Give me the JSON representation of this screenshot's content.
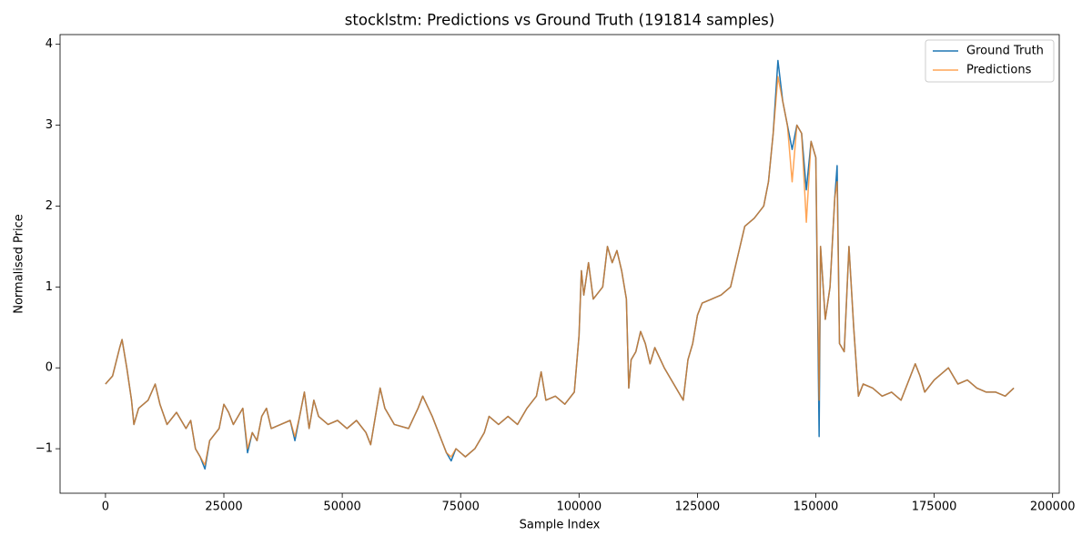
{
  "chart_data": {
    "type": "line",
    "title": "stocklstm: Predictions vs Ground Truth (191814 samples)",
    "x_label": "Sample Index",
    "y_label": "Normalised Price",
    "x": [
      0,
      1500,
      3000,
      3500,
      4500,
      5500,
      6000,
      7000,
      9000,
      10500,
      11500,
      13000,
      15000,
      17000,
      18000,
      19000,
      20000,
      21000,
      22000,
      24000,
      25000,
      26000,
      27000,
      29000,
      30000,
      31000,
      32000,
      33000,
      34000,
      35000,
      37000,
      39000,
      40000,
      41000,
      42000,
      43000,
      44000,
      45000,
      47000,
      49000,
      51000,
      53000,
      55000,
      56000,
      57000,
      58000,
      59000,
      61000,
      64000,
      66000,
      67000,
      69000,
      71000,
      72000,
      73000,
      74000,
      76000,
      78000,
      80000,
      81000,
      83000,
      85000,
      87000,
      89000,
      91000,
      92000,
      93000,
      95000,
      97000,
      99000,
      100000,
      100500,
      101000,
      102000,
      103000,
      105000,
      106000,
      107000,
      108000,
      109000,
      110000,
      110500,
      111000,
      112000,
      113000,
      114000,
      115000,
      116000,
      118000,
      120000,
      122000,
      123000,
      124000,
      125000,
      126000,
      128000,
      130000,
      132000,
      134000,
      135000,
      137000,
      139000,
      140000,
      141000,
      142000,
      143000,
      144000,
      145000,
      146000,
      147000,
      148000,
      149000,
      150000,
      150700,
      151000,
      152000,
      153000,
      154000,
      154500,
      155000,
      156000,
      157000,
      158000,
      159000,
      160000,
      162000,
      164000,
      166000,
      168000,
      170000,
      171000,
      172000,
      173000,
      175000,
      177000,
      178000,
      180000,
      182000,
      184000,
      186000,
      188000,
      190000,
      191813
    ],
    "series": [
      {
        "name": "Ground Truth",
        "color": "#1f77b4",
        "alpha": 1,
        "values": [
          -0.2,
          -0.1,
          0.25,
          0.35,
          0,
          -0.4,
          -0.7,
          -0.5,
          -0.4,
          -0.2,
          -0.45,
          -0.7,
          -0.55,
          -0.75,
          -0.65,
          -1.0,
          -1.1,
          -1.25,
          -0.9,
          -0.75,
          -0.45,
          -0.55,
          -0.7,
          -0.5,
          -1.05,
          -0.8,
          -0.9,
          -0.6,
          -0.5,
          -0.75,
          -0.7,
          -0.65,
          -0.9,
          -0.6,
          -0.3,
          -0.75,
          -0.4,
          -0.6,
          -0.7,
          -0.65,
          -0.75,
          -0.65,
          -0.8,
          -0.95,
          -0.6,
          -0.25,
          -0.5,
          -0.7,
          -0.75,
          -0.5,
          -0.35,
          -0.6,
          -0.9,
          -1.05,
          -1.15,
          -1.0,
          -1.1,
          -1.0,
          -0.8,
          -0.6,
          -0.7,
          -0.6,
          -0.7,
          -0.5,
          -0.35,
          -0.05,
          -0.4,
          -0.35,
          -0.45,
          -0.3,
          0.4,
          1.2,
          0.9,
          1.3,
          0.85,
          1.0,
          1.5,
          1.3,
          1.45,
          1.2,
          0.85,
          -0.25,
          0.1,
          0.2,
          0.45,
          0.3,
          0.05,
          0.25,
          0.0,
          -0.2,
          -0.4,
          0.1,
          0.3,
          0.65,
          0.8,
          0.85,
          0.9,
          1.0,
          1.5,
          1.75,
          1.85,
          2.0,
          2.3,
          2.9,
          3.8,
          3.3,
          3.0,
          2.7,
          3.0,
          2.9,
          2.2,
          2.8,
          2.6,
          -0.85,
          1.5,
          0.6,
          1.0,
          2.1,
          2.5,
          0.3,
          0.2,
          1.5,
          0.5,
          -0.35,
          -0.2,
          -0.25,
          -0.35,
          -0.3,
          -0.4,
          -0.1,
          0.05,
          -0.1,
          -0.3,
          -0.15,
          -0.05,
          0.0,
          -0.2,
          -0.15,
          -0.25,
          -0.3,
          -0.3,
          -0.35,
          -0.25
        ]
      },
      {
        "name": "Predictions",
        "color": "#ff7f0e",
        "alpha": 0.7,
        "values": [
          -0.2,
          -0.1,
          0.25,
          0.35,
          0,
          -0.4,
          -0.7,
          -0.5,
          -0.4,
          -0.2,
          -0.45,
          -0.7,
          -0.55,
          -0.75,
          -0.65,
          -1.0,
          -1.1,
          -1.2,
          -0.9,
          -0.75,
          -0.45,
          -0.55,
          -0.7,
          -0.5,
          -1.0,
          -0.8,
          -0.9,
          -0.6,
          -0.5,
          -0.75,
          -0.7,
          -0.65,
          -0.85,
          -0.6,
          -0.3,
          -0.75,
          -0.4,
          -0.6,
          -0.7,
          -0.65,
          -0.75,
          -0.65,
          -0.8,
          -0.95,
          -0.6,
          -0.25,
          -0.5,
          -0.7,
          -0.75,
          -0.5,
          -0.35,
          -0.6,
          -0.9,
          -1.05,
          -1.1,
          -1.0,
          -1.1,
          -1.0,
          -0.8,
          -0.6,
          -0.7,
          -0.6,
          -0.7,
          -0.5,
          -0.35,
          -0.05,
          -0.4,
          -0.35,
          -0.45,
          -0.3,
          0.4,
          1.2,
          0.9,
          1.3,
          0.85,
          1.0,
          1.5,
          1.3,
          1.45,
          1.2,
          0.85,
          -0.25,
          0.1,
          0.2,
          0.45,
          0.3,
          0.05,
          0.25,
          0.0,
          -0.2,
          -0.4,
          0.1,
          0.3,
          0.65,
          0.8,
          0.85,
          0.9,
          1.0,
          1.5,
          1.75,
          1.85,
          2.0,
          2.3,
          2.9,
          3.6,
          3.3,
          3.0,
          2.3,
          3.0,
          2.9,
          1.8,
          2.8,
          2.6,
          -0.4,
          1.5,
          0.6,
          1.0,
          2.1,
          2.3,
          0.3,
          0.2,
          1.5,
          0.5,
          -0.35,
          -0.2,
          -0.25,
          -0.35,
          -0.3,
          -0.4,
          -0.1,
          0.05,
          -0.1,
          -0.3,
          -0.15,
          -0.05,
          0.0,
          -0.2,
          -0.15,
          -0.25,
          -0.3,
          -0.3,
          -0.35,
          -0.25
        ]
      }
    ],
    "xlim": [
      -9591,
      201404
    ],
    "ylim": [
      -1.55,
      4.12
    ],
    "xticks": [
      0,
      25000,
      50000,
      75000,
      100000,
      125000,
      150000,
      175000,
      200000
    ],
    "yticks": [
      {
        "value": -1,
        "label": "−1"
      },
      0,
      1,
      2,
      3,
      4
    ],
    "grid": false,
    "legend": "upper right"
  }
}
